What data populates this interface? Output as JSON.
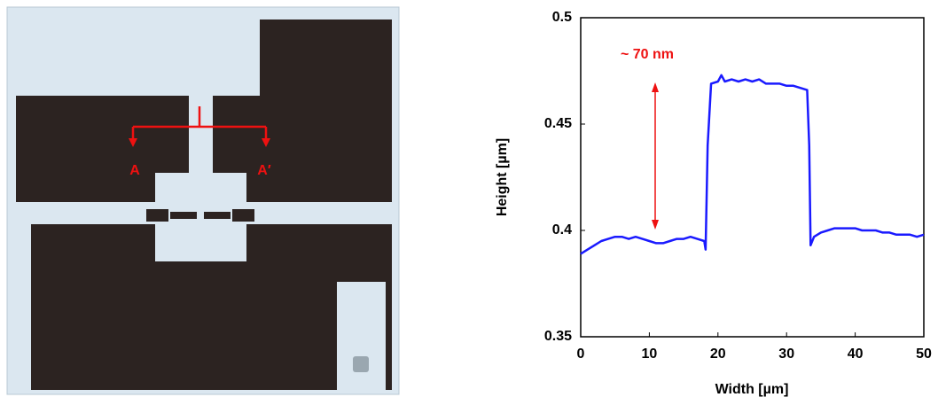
{
  "image": {
    "labels": [
      "A",
      "A′"
    ]
  },
  "chart_data": {
    "type": "line",
    "xlabel": "Width [µm]",
    "ylabel": "Height [µm]",
    "annotation": "~ 70 nm",
    "color": "#1a1aff",
    "x": [
      0,
      1,
      2,
      3,
      4,
      5,
      6,
      7,
      8,
      9,
      10,
      11,
      12,
      13,
      14,
      15,
      16,
      17,
      18,
      18.2,
      18.5,
      19,
      20,
      20.5,
      21,
      22,
      23,
      24,
      25,
      26,
      27,
      28,
      29,
      30,
      31,
      32,
      33,
      33.3,
      33.5,
      34,
      35,
      36,
      37,
      38,
      39,
      40,
      41,
      42,
      43,
      44,
      45,
      46,
      47,
      48,
      49,
      50
    ],
    "values": [
      0.389,
      0.391,
      0.393,
      0.395,
      0.396,
      0.397,
      0.397,
      0.396,
      0.397,
      0.396,
      0.395,
      0.394,
      0.394,
      0.395,
      0.396,
      0.396,
      0.397,
      0.396,
      0.395,
      0.391,
      0.44,
      0.469,
      0.47,
      0.473,
      0.47,
      0.471,
      0.47,
      0.471,
      0.47,
      0.471,
      0.469,
      0.469,
      0.469,
      0.468,
      0.468,
      0.467,
      0.466,
      0.44,
      0.393,
      0.397,
      0.399,
      0.4,
      0.401,
      0.401,
      0.401,
      0.401,
      0.4,
      0.4,
      0.4,
      0.399,
      0.399,
      0.398,
      0.398,
      0.398,
      0.397,
      0.398
    ],
    "xlim": [
      0,
      50
    ],
    "xticks": [
      0,
      10,
      20,
      30,
      40,
      50
    ],
    "ylim": [
      0.35,
      0.5
    ],
    "yticks": [
      0.35,
      0.4,
      0.45,
      0.5
    ]
  }
}
